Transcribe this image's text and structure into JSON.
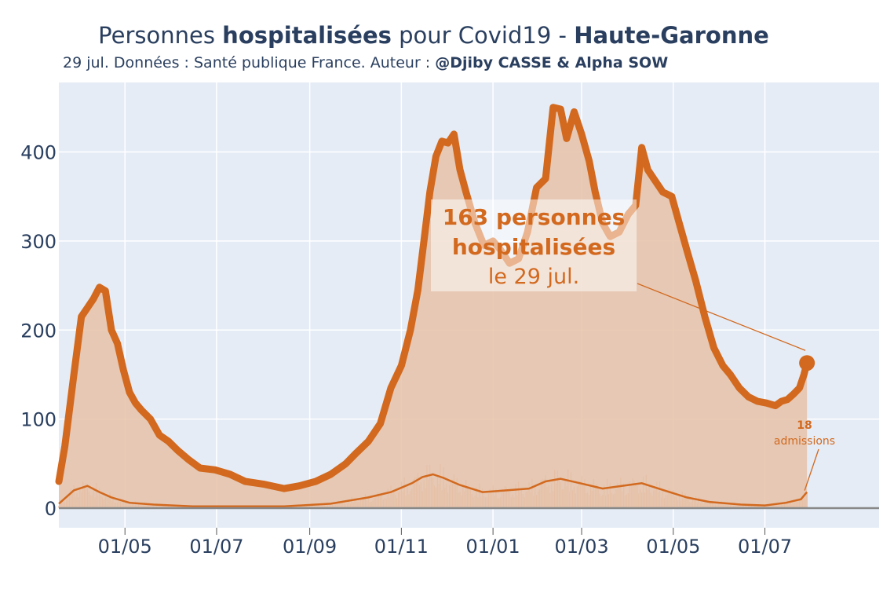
{
  "title": {
    "part1": "Personnes ",
    "part2": "hospitalisées",
    "part3": " pour Covid19 - ",
    "part4": "Haute-Garonne"
  },
  "subtitle": {
    "text": "29 jul. Données : Santé publique France. Auteur : ",
    "author": "@Djiby CASSE & Alpha SOW"
  },
  "annotation": {
    "value_line": "163 personnes",
    "label_line": "hospitalisées",
    "date_line": "le 29 jul."
  },
  "admissions_annotation": {
    "value": "18",
    "label": "admissions"
  },
  "colors": {
    "line": "#d2691e",
    "fill": "#e6c2a8",
    "plot_bg": "#e5ecf6",
    "grid": "#ffffff",
    "text": "#2a3f5f",
    "zero_line": "#888888"
  },
  "chart_data": {
    "type": "area",
    "title": "Personnes hospitalisées pour Covid19 - Haute-Garonne",
    "x_range": [
      "2020-03-18",
      "2021-09-15"
    ],
    "y_range": [
      -22,
      478
    ],
    "y_ticks": [
      0,
      100,
      200,
      300,
      400
    ],
    "x_ticks": [
      "01/05",
      "01/07",
      "01/09",
      "01/11",
      "01/01",
      "01/03",
      "01/05",
      "01/07"
    ],
    "x_tick_dates": [
      "2020-05-01",
      "2020-07-01",
      "2020-09-01",
      "2020-11-01",
      "2021-01-01",
      "2021-03-01",
      "2021-05-01",
      "2021-07-01"
    ],
    "grid": true,
    "series": [
      {
        "name": "Personnes hospitalisées",
        "points": [
          [
            "2020-03-18",
            30
          ],
          [
            "2020-03-22",
            70
          ],
          [
            "2020-03-28",
            150
          ],
          [
            "2020-04-02",
            215
          ],
          [
            "2020-04-06",
            225
          ],
          [
            "2020-04-10",
            235
          ],
          [
            "2020-04-14",
            248
          ],
          [
            "2020-04-18",
            244
          ],
          [
            "2020-04-22",
            200
          ],
          [
            "2020-04-26",
            185
          ],
          [
            "2020-04-30",
            155
          ],
          [
            "2020-05-04",
            130
          ],
          [
            "2020-05-08",
            118
          ],
          [
            "2020-05-12",
            110
          ],
          [
            "2020-05-18",
            100
          ],
          [
            "2020-05-24",
            82
          ],
          [
            "2020-05-30",
            75
          ],
          [
            "2020-06-05",
            65
          ],
          [
            "2020-06-12",
            55
          ],
          [
            "2020-06-20",
            45
          ],
          [
            "2020-06-30",
            43
          ],
          [
            "2020-07-10",
            38
          ],
          [
            "2020-07-20",
            30
          ],
          [
            "2020-08-01",
            27
          ],
          [
            "2020-08-15",
            22
          ],
          [
            "2020-08-25",
            25
          ],
          [
            "2020-09-05",
            30
          ],
          [
            "2020-09-15",
            38
          ],
          [
            "2020-09-25",
            50
          ],
          [
            "2020-10-02",
            62
          ],
          [
            "2020-10-10",
            75
          ],
          [
            "2020-10-18",
            95
          ],
          [
            "2020-10-25",
            135
          ],
          [
            "2020-11-01",
            160
          ],
          [
            "2020-11-07",
            200
          ],
          [
            "2020-11-12",
            245
          ],
          [
            "2020-11-16",
            300
          ],
          [
            "2020-11-20",
            355
          ],
          [
            "2020-11-24",
            395
          ],
          [
            "2020-11-28",
            412
          ],
          [
            "2020-12-02",
            410
          ],
          [
            "2020-12-06",
            420
          ],
          [
            "2020-12-10",
            380
          ],
          [
            "2020-12-14",
            355
          ],
          [
            "2020-12-20",
            320
          ],
          [
            "2020-12-26",
            295
          ],
          [
            "2021-01-01",
            300
          ],
          [
            "2021-01-06",
            290
          ],
          [
            "2021-01-12",
            275
          ],
          [
            "2021-01-18",
            280
          ],
          [
            "2021-01-24",
            310
          ],
          [
            "2021-01-30",
            360
          ],
          [
            "2021-02-05",
            370
          ],
          [
            "2021-02-10",
            450
          ],
          [
            "2021-02-15",
            448
          ],
          [
            "2021-02-19",
            415
          ],
          [
            "2021-02-24",
            445
          ],
          [
            "2021-03-01",
            420
          ],
          [
            "2021-03-06",
            390
          ],
          [
            "2021-03-10",
            355
          ],
          [
            "2021-03-15",
            320
          ],
          [
            "2021-03-20",
            305
          ],
          [
            "2021-03-26",
            310
          ],
          [
            "2021-04-01",
            330
          ],
          [
            "2021-04-06",
            340
          ],
          [
            "2021-04-10",
            405
          ],
          [
            "2021-04-14",
            380
          ],
          [
            "2021-04-18",
            370
          ],
          [
            "2021-04-24",
            355
          ],
          [
            "2021-04-30",
            350
          ],
          [
            "2021-05-05",
            320
          ],
          [
            "2021-05-10",
            290
          ],
          [
            "2021-05-16",
            255
          ],
          [
            "2021-05-22",
            215
          ],
          [
            "2021-05-28",
            180
          ],
          [
            "2021-06-03",
            160
          ],
          [
            "2021-06-08",
            150
          ],
          [
            "2021-06-14",
            135
          ],
          [
            "2021-06-20",
            125
          ],
          [
            "2021-06-26",
            120
          ],
          [
            "2021-07-02",
            118
          ],
          [
            "2021-07-08",
            115
          ],
          [
            "2021-07-12",
            120
          ],
          [
            "2021-07-16",
            122
          ],
          [
            "2021-07-20",
            128
          ],
          [
            "2021-07-24",
            135
          ],
          [
            "2021-07-27",
            150
          ],
          [
            "2021-07-29",
            163
          ]
        ]
      },
      {
        "name": "admissions",
        "points": [
          [
            "2020-03-18",
            5
          ],
          [
            "2020-03-28",
            20
          ],
          [
            "2020-04-06",
            25
          ],
          [
            "2020-04-14",
            18
          ],
          [
            "2020-04-22",
            12
          ],
          [
            "2020-05-04",
            6
          ],
          [
            "2020-05-20",
            4
          ],
          [
            "2020-06-15",
            2
          ],
          [
            "2020-07-15",
            2
          ],
          [
            "2020-08-15",
            2
          ],
          [
            "2020-09-15",
            5
          ],
          [
            "2020-10-10",
            12
          ],
          [
            "2020-10-25",
            18
          ],
          [
            "2020-11-08",
            28
          ],
          [
            "2020-11-15",
            35
          ],
          [
            "2020-11-22",
            38
          ],
          [
            "2020-11-29",
            34
          ],
          [
            "2020-12-10",
            26
          ],
          [
            "2020-12-25",
            18
          ],
          [
            "2021-01-10",
            20
          ],
          [
            "2021-01-25",
            22
          ],
          [
            "2021-02-05",
            30
          ],
          [
            "2021-02-15",
            33
          ],
          [
            "2021-02-28",
            28
          ],
          [
            "2021-03-15",
            22
          ],
          [
            "2021-04-01",
            26
          ],
          [
            "2021-04-10",
            28
          ],
          [
            "2021-04-25",
            20
          ],
          [
            "2021-05-10",
            12
          ],
          [
            "2021-05-25",
            7
          ],
          [
            "2021-06-15",
            4
          ],
          [
            "2021-07-01",
            3
          ],
          [
            "2021-07-15",
            6
          ],
          [
            "2021-07-25",
            10
          ],
          [
            "2021-07-29",
            18
          ]
        ]
      }
    ],
    "last_value": {
      "date": "2021-07-29",
      "hospitalisés": 163,
      "admissions": 18
    }
  }
}
